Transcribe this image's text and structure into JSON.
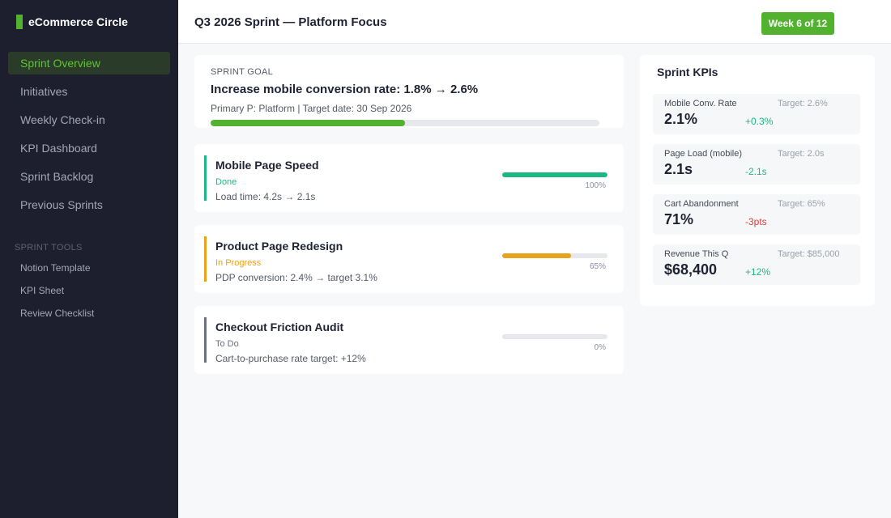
{
  "sidebar": {
    "brand": "eCommerce Circle",
    "nav": [
      {
        "label": "Sprint Overview",
        "active": true
      },
      {
        "label": "Initiatives"
      },
      {
        "label": "Weekly Check-in"
      },
      {
        "label": "KPI Dashboard"
      },
      {
        "label": "Sprint Backlog"
      },
      {
        "label": "Previous Sprints"
      }
    ],
    "tools_title": "SPRINT TOOLS",
    "tools": [
      "Notion Template",
      "KPI Sheet",
      "Review Checklist"
    ]
  },
  "header": {
    "title": "Q3 2026 Sprint — Platform Focus",
    "badge": "Week 6 of 12"
  },
  "goal": {
    "label": "SPRINT GOAL",
    "title": "Increase mobile conversion rate: 1.8% → 2.6%",
    "meta": "Primary P: Platform  |  Target date: 30 Sep 2026",
    "progress": 0.5
  },
  "initiatives": [
    {
      "title": "Mobile Page Speed",
      "status": "Done",
      "detail": "Load time: 4.2s → 2.1s",
      "progress": 1.0,
      "percent": "100%",
      "color": "#1db882"
    },
    {
      "title": "Product Page Redesign",
      "status": "In Progress",
      "detail": "PDP conversion: 2.4% → target 3.1%",
      "progress": 0.65,
      "percent": "65%",
      "color": "#e8a21c"
    },
    {
      "title": "Checkout Friction Audit",
      "status": "To Do",
      "detail": "Cart-to-purchase rate target: +12%",
      "progress": 0.0,
      "percent": "0%",
      "color": "#6b6f7e"
    }
  ],
  "kpis": {
    "heading": "Sprint KPIs",
    "items": [
      {
        "name": "Mobile Conv. Rate",
        "target": "Target: 2.6%",
        "value": "2.1%",
        "delta": "+0.3%",
        "delta_color": "#1db882"
      },
      {
        "name": "Page Load (mobile)",
        "target": "Target: 2.0s",
        "value": "2.1s",
        "delta": "-2.1s",
        "delta_color": "#1db882"
      },
      {
        "name": "Cart Abandonment",
        "target": "Target: 65%",
        "value": "71%",
        "delta": "-3pts",
        "delta_color": "#e03b3b"
      },
      {
        "name": "Revenue This Q",
        "target": "Target: $85,000",
        "value": "$68,400",
        "delta": "+12%",
        "delta_color": "#1db882"
      }
    ]
  }
}
